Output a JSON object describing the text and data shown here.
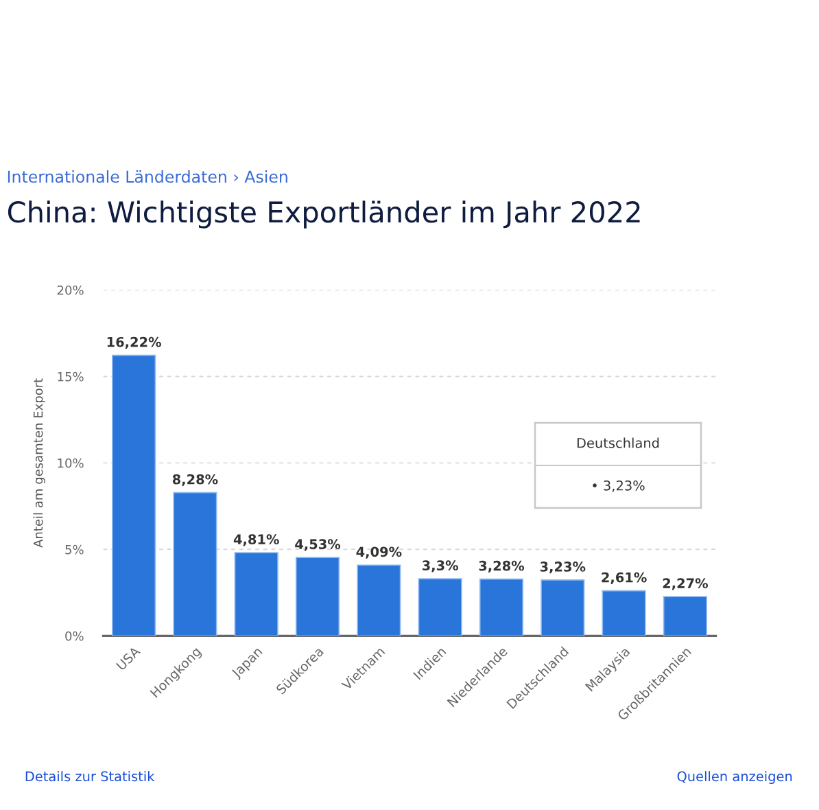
{
  "chart_data": {
    "type": "bar",
    "title": "China: Wichtigste Exportländer im Jahr 2022",
    "subtitle": "Internationale Länderdaten › Asien",
    "ylabel": "Anteil am gesamten Export",
    "categories": [
      "USA",
      "Hongkong",
      "Japan",
      "Südkorea",
      "Vietnam",
      "Indien",
      "Niederlande",
      "Deutschland",
      "Malaysia",
      "Großbritannien"
    ],
    "values": [
      16.22,
      8.28,
      4.81,
      4.53,
      4.09,
      3.3,
      3.28,
      3.23,
      2.61,
      2.27
    ],
    "value_labels": [
      "16,22%",
      "8,28%",
      "4,81%",
      "4,53%",
      "4,09%",
      "3,3%",
      "3,28%",
      "3,23%",
      "2,61%",
      "2,27%"
    ],
    "color": "#2a75d9",
    "ylim": [
      0,
      20
    ],
    "yticks": [
      {
        "value": 0,
        "label": "0%"
      },
      {
        "value": 5,
        "label": "5%"
      },
      {
        "value": 10,
        "label": "10%"
      },
      {
        "value": 15,
        "label": "15%"
      },
      {
        "value": 20,
        "label": "20%"
      }
    ],
    "grid": "y",
    "annotations": [
      "Deutschland",
      "• 3,23%",
      "Details zur Statistik",
      "Quellen anzeigen"
    ]
  }
}
